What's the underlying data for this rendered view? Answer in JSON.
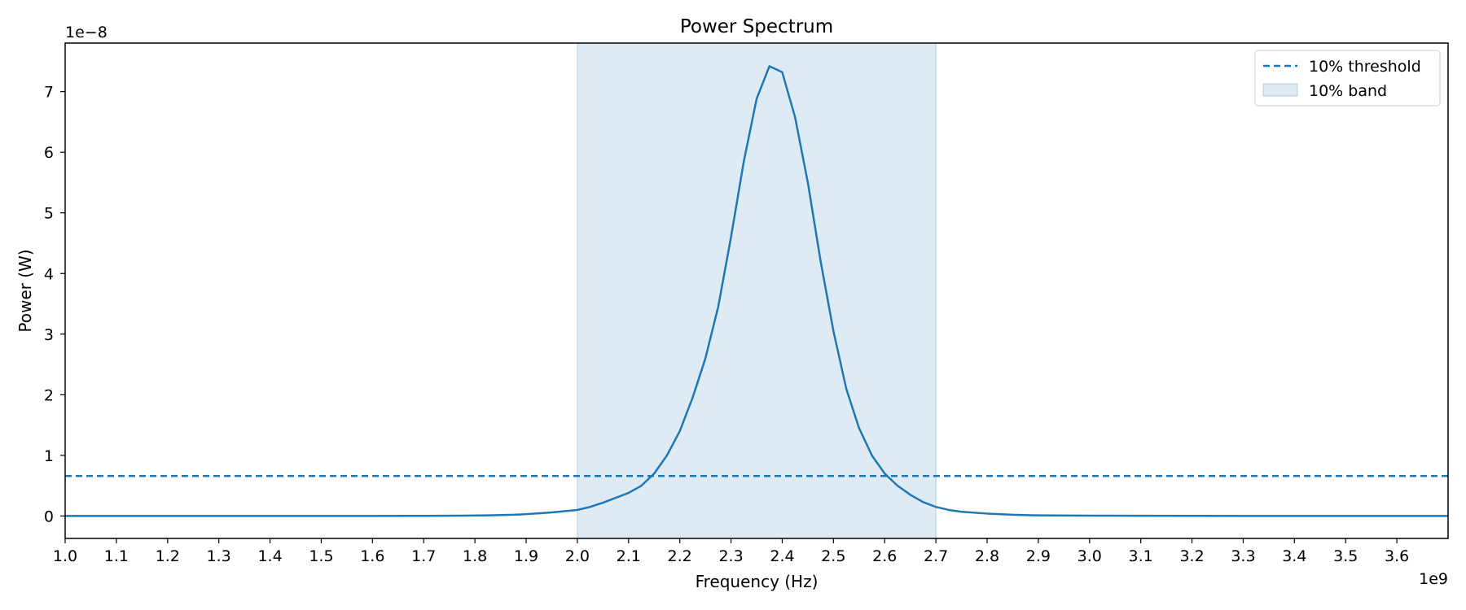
{
  "chart_data": {
    "type": "line",
    "title": "Power Spectrum",
    "xlabel": "Frequency (Hz)",
    "ylabel": "Power (W)",
    "x_offset_label": "1e9",
    "y_offset_label": "1e−8",
    "x_scale": 1000000000,
    "y_scale": 1e-08,
    "xlim": [
      1000000000.0,
      3700000000.0
    ],
    "ylim": [
      -3.7e-09,
      7.8e-08
    ],
    "x_ticks": [
      1000000000.0,
      1100000000.0,
      1200000000.0,
      1300000000.0,
      1400000000.0,
      1500000000.0,
      1600000000.0,
      1700000000.0,
      1800000000.0,
      1900000000.0,
      2000000000.0,
      2100000000.0,
      2200000000.0,
      2300000000.0,
      2400000000.0,
      2500000000.0,
      2600000000.0,
      2700000000.0,
      2800000000.0,
      2900000000.0,
      3000000000.0,
      3100000000.0,
      3200000000.0,
      3300000000.0,
      3400000000.0,
      3500000000.0,
      3600000000.0
    ],
    "x_tick_labels": [
      "1.0",
      "1.1",
      "1.2",
      "1.3",
      "1.4",
      "1.5",
      "1.6",
      "1.7",
      "1.8",
      "1.9",
      "2.0",
      "2.1",
      "2.2",
      "2.3",
      "2.4",
      "2.5",
      "2.6",
      "2.7",
      "2.8",
      "2.9",
      "3.0",
      "3.1",
      "3.2",
      "3.3",
      "3.4",
      "3.5",
      "3.6"
    ],
    "y_ticks": [
      0,
      1e-08,
      2e-08,
      3e-08,
      4e-08,
      5e-08,
      6e-08,
      7e-08
    ],
    "y_tick_labels": [
      "0",
      "1",
      "2",
      "3",
      "4",
      "5",
      "6",
      "7"
    ],
    "grid": false,
    "legend_position": "top-right",
    "series": [
      {
        "color": "#1f77b4",
        "x": [
          1000000000.0,
          1100000000.0,
          1200000000.0,
          1300000000.0,
          1400000000.0,
          1500000000.0,
          1600000000.0,
          1700000000.0,
          1775000000.0,
          1825000000.0,
          1875000000.0,
          1900000000.0,
          1925000000.0,
          1950000000.0,
          1975000000.0,
          2000000000.0,
          2025000000.0,
          2050000000.0,
          2075000000.0,
          2100000000.0,
          2125000000.0,
          2150000000.0,
          2175000000.0,
          2200000000.0,
          2225000000.0,
          2250000000.0,
          2275000000.0,
          2300000000.0,
          2325000000.0,
          2350000000.0,
          2375000000.0,
          2400000000.0,
          2425000000.0,
          2450000000.0,
          2475000000.0,
          2500000000.0,
          2525000000.0,
          2550000000.0,
          2575000000.0,
          2600000000.0,
          2625000000.0,
          2650000000.0,
          2675000000.0,
          2700000000.0,
          2725000000.0,
          2750000000.0,
          2800000000.0,
          2850000000.0,
          2900000000.0,
          3000000000.0,
          3200000000.0,
          3400000000.0,
          3700000000.0
        ],
        "y": [
          0,
          0,
          0,
          0,
          0,
          0,
          0,
          2e-11,
          5e-11,
          1e-10,
          2e-10,
          3e-10,
          4.5e-10,
          6e-10,
          8e-10,
          1e-09,
          1.5e-09,
          2.2e-09,
          3e-09,
          3.8e-09,
          5e-09,
          7e-09,
          1e-08,
          1.4e-08,
          1.95e-08,
          2.6e-08,
          3.45e-08,
          4.6e-08,
          5.85e-08,
          6.88e-08,
          7.42e-08,
          7.32e-08,
          6.58e-08,
          5.5e-08,
          4.2e-08,
          3.05e-08,
          2.1e-08,
          1.45e-08,
          1e-08,
          7e-09,
          5e-09,
          3.5e-09,
          2.3e-09,
          1.5e-09,
          1e-09,
          7e-10,
          4e-10,
          2e-10,
          1e-10,
          5e-11,
          2e-11,
          0,
          0
        ]
      }
    ],
    "threshold": {
      "label": "10% threshold",
      "value": 6.6e-09,
      "color": "#1f77b4"
    },
    "band": {
      "label": "10% band",
      "x_start": 2000000000.0,
      "x_end": 2700000000.0,
      "color": "#1f77b4",
      "opacity": 0.15
    }
  }
}
